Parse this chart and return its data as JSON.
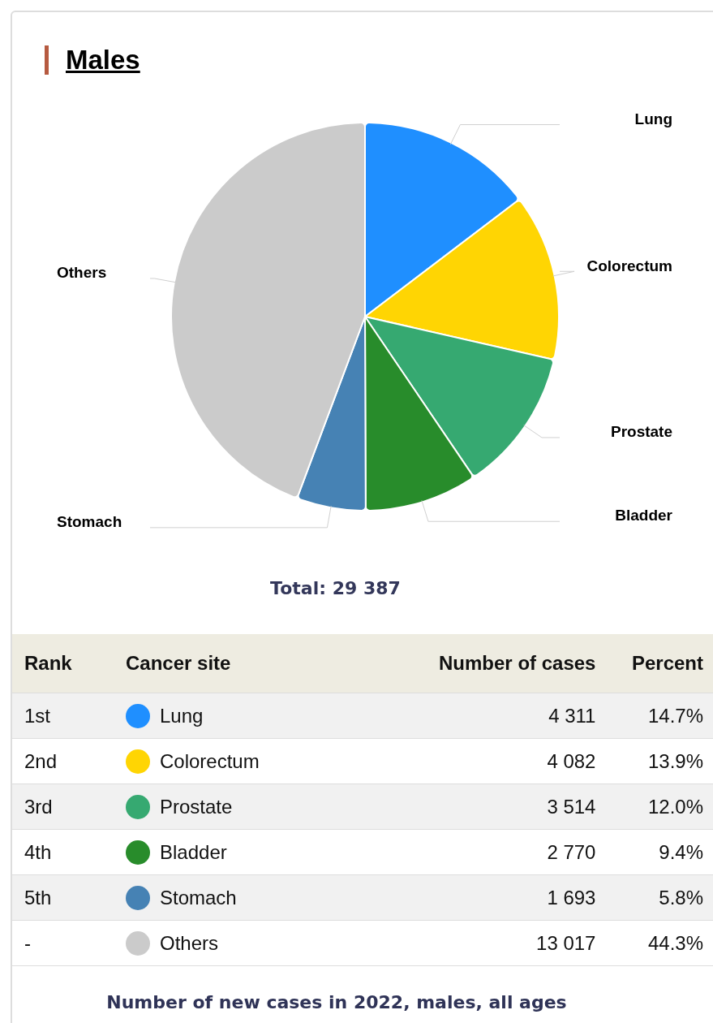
{
  "chart_data": {
    "type": "pie",
    "title": "Males",
    "subtitle": "Total: 29 387",
    "categories": [
      "Lung",
      "Colorectum",
      "Prostate",
      "Bladder",
      "Stomach",
      "Others"
    ],
    "values": [
      4311,
      4082,
      3514,
      2770,
      1693,
      13017
    ],
    "colors": [
      "#1f8fff",
      "#ffd503",
      "#36a971",
      "#288c2b",
      "#4682b4",
      "#cbcbcb"
    ],
    "value_labels": [
      "4 311",
      "4 082",
      "3 514",
      "2 770",
      "1 693",
      "13 017"
    ],
    "data_labels": true,
    "legend": "bottom",
    "annotations": [
      "Rank",
      "Cancer site",
      "Number of cases",
      "Percent",
      "1st",
      "2nd",
      "3rd",
      "4th",
      "5th",
      "-",
      "14.7%",
      "13.9%",
      "12.0%",
      "9.4%",
      "5.8%",
      "44.3%",
      "Number of new cases in 2022, males, all ages"
    ]
  }
}
